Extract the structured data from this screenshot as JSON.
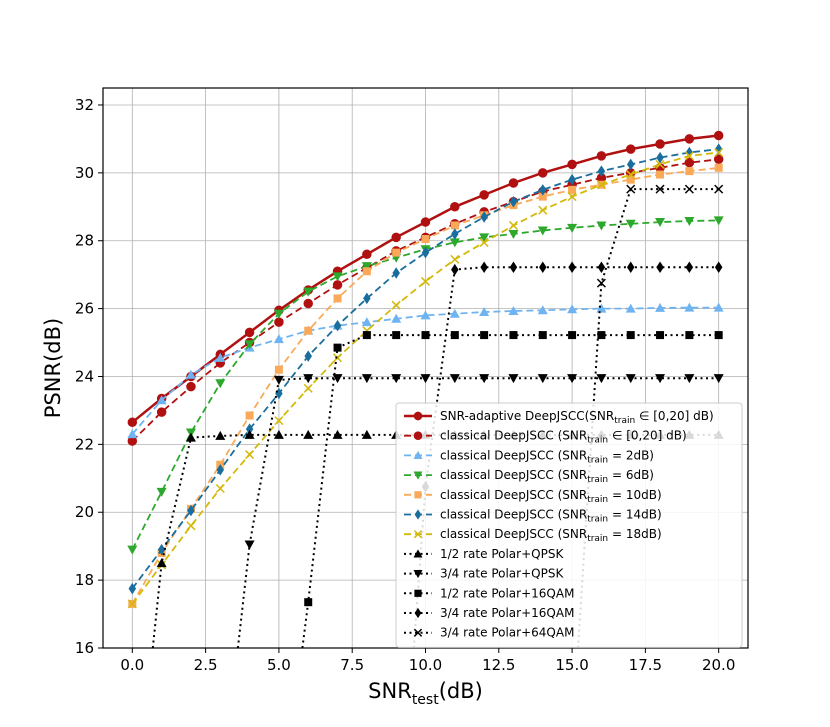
{
  "chart_data": {
    "type": "line",
    "xlabel": "SNR",
    "xlabel_sub": "test",
    "xlabel_suffix": "(dB)",
    "ylabel": "PSNR(dB)",
    "xlim": [
      -1,
      21
    ],
    "ylim": [
      16,
      32.5
    ],
    "xticks": [
      "0.0",
      "2.5",
      "5.0",
      "7.5",
      "10.0",
      "12.5",
      "15.0",
      "17.5",
      "20.0"
    ],
    "yticks": [
      "16",
      "18",
      "20",
      "22",
      "24",
      "26",
      "28",
      "30",
      "32"
    ],
    "grid": true,
    "legend_position": "lower-right",
    "series": [
      {
        "name": "SNR-adaptive DeepJSCC(SNR",
        "sub": "train",
        "suffix": " ∈ [0,20] dB)",
        "color": "#b01010",
        "dash": "solid",
        "marker": "circle",
        "width": 2.5,
        "x": [
          0,
          1,
          2,
          3,
          4,
          5,
          6,
          7,
          8,
          9,
          10,
          11,
          12,
          13,
          14,
          15,
          16,
          17,
          18,
          19,
          20
        ],
        "y": [
          22.65,
          23.35,
          24.0,
          24.65,
          25.3,
          25.95,
          26.55,
          27.1,
          27.6,
          28.1,
          28.55,
          29.0,
          29.35,
          29.7,
          30.0,
          30.25,
          30.5,
          30.7,
          30.85,
          31.0,
          31.1
        ]
      },
      {
        "name": "classical DeepJSCC (SNR",
        "sub": "train",
        "suffix": " ∈ [0,20] dB)",
        "color": "#b01010",
        "dash": "dashed",
        "marker": "circle",
        "width": 1.8,
        "x": [
          0,
          1,
          2,
          3,
          4,
          5,
          6,
          7,
          8,
          9,
          10,
          11,
          12,
          13,
          14,
          15,
          16,
          17,
          18,
          19,
          20
        ],
        "y": [
          22.1,
          22.95,
          23.7,
          24.4,
          25.0,
          25.6,
          26.15,
          26.7,
          27.2,
          27.7,
          28.1,
          28.5,
          28.85,
          29.15,
          29.45,
          29.65,
          29.85,
          30.0,
          30.15,
          30.3,
          30.4
        ]
      },
      {
        "name": "classical DeepJSCC (SNR",
        "sub": "train",
        "suffix": " = 2dB)",
        "color": "#6fb4f2",
        "dash": "dashed",
        "marker": "triangle-up",
        "width": 1.8,
        "x": [
          0,
          1,
          2,
          3,
          4,
          5,
          6,
          7,
          8,
          9,
          10,
          11,
          12,
          13,
          14,
          15,
          16,
          17,
          18,
          19,
          20
        ],
        "y": [
          22.3,
          23.3,
          24.05,
          24.55,
          24.85,
          25.1,
          25.35,
          25.5,
          25.6,
          25.7,
          25.8,
          25.85,
          25.9,
          25.93,
          25.95,
          25.98,
          26.0,
          26.0,
          26.02,
          26.03,
          26.03
        ]
      },
      {
        "name": "classical DeepJSCC (SNR",
        "sub": "train",
        "suffix": " = 6dB)",
        "color": "#2ca82c",
        "dash": "dashed",
        "marker": "triangle-down",
        "width": 1.8,
        "x": [
          0,
          1,
          2,
          3,
          4,
          5,
          6,
          7,
          8,
          9,
          10,
          11,
          12,
          13,
          14,
          15,
          16,
          17,
          18,
          19,
          20
        ],
        "y": [
          18.9,
          20.6,
          22.35,
          23.8,
          24.95,
          25.85,
          26.5,
          26.95,
          27.25,
          27.5,
          27.75,
          27.95,
          28.1,
          28.2,
          28.3,
          28.38,
          28.45,
          28.5,
          28.55,
          28.58,
          28.6
        ]
      },
      {
        "name": "classical DeepJSCC (SNR",
        "sub": "train",
        "suffix": " = 10dB)",
        "color": "#f9a957",
        "dash": "dashed",
        "marker": "square",
        "width": 1.8,
        "x": [
          0,
          1,
          2,
          3,
          4,
          5,
          6,
          7,
          8,
          9,
          10,
          11,
          12,
          13,
          14,
          15,
          16,
          17,
          18,
          19,
          20
        ],
        "y": [
          17.3,
          18.8,
          20.1,
          21.4,
          22.85,
          24.2,
          25.35,
          26.3,
          27.1,
          27.65,
          28.05,
          28.45,
          28.75,
          29.05,
          29.3,
          29.5,
          29.65,
          29.8,
          29.95,
          30.05,
          30.15
        ]
      },
      {
        "name": "classical DeepJSCC (SNR",
        "sub": "train",
        "suffix": " = 14dB)",
        "color": "#1a6e9e",
        "dash": "dashed",
        "marker": "diamond",
        "width": 1.8,
        "x": [
          0,
          1,
          2,
          3,
          4,
          5,
          6,
          7,
          8,
          9,
          10,
          11,
          12,
          13,
          14,
          15,
          16,
          17,
          18,
          19,
          20
        ],
        "y": [
          17.75,
          18.9,
          20.05,
          21.25,
          22.45,
          23.5,
          24.6,
          25.5,
          26.3,
          27.05,
          27.65,
          28.2,
          28.7,
          29.15,
          29.5,
          29.8,
          30.05,
          30.25,
          30.45,
          30.6,
          30.7
        ]
      },
      {
        "name": "classical DeepJSCC (SNR",
        "sub": "train",
        "suffix": " = 18dB)",
        "color": "#d4b90a",
        "dash": "dashed",
        "marker": "x",
        "width": 1.8,
        "x": [
          0,
          1,
          2,
          3,
          4,
          5,
          6,
          7,
          8,
          9,
          10,
          11,
          12,
          13,
          14,
          15,
          16,
          17,
          18,
          19,
          20
        ],
        "y": [
          17.3,
          18.45,
          19.6,
          20.7,
          21.7,
          22.7,
          23.65,
          24.55,
          25.35,
          26.1,
          26.8,
          27.45,
          27.95,
          28.45,
          28.9,
          29.3,
          29.65,
          29.95,
          30.25,
          30.5,
          30.6
        ]
      },
      {
        "name": "1/2 rate Polar+QPSK",
        "color": "#000000",
        "dash": "dotted",
        "marker": "triangle-up",
        "width": 2,
        "x": [
          0.7,
          1,
          2,
          3,
          4,
          5,
          6,
          7,
          8,
          9,
          10,
          11,
          12,
          13,
          14,
          15,
          16,
          17,
          18,
          19,
          20
        ],
        "y": [
          16.0,
          18.5,
          22.2,
          22.25,
          22.28,
          22.28,
          22.28,
          22.28,
          22.28,
          22.28,
          22.28,
          22.28,
          22.28,
          22.28,
          22.28,
          22.28,
          22.28,
          22.28,
          22.28,
          22.28,
          22.28
        ]
      },
      {
        "name": "3/4 rate Polar+QPSK",
        "color": "#000000",
        "dash": "dotted",
        "marker": "triangle-down",
        "width": 2,
        "x": [
          3.6,
          4,
          5,
          6,
          7,
          8,
          9,
          10,
          11,
          12,
          13,
          14,
          15,
          16,
          17,
          18,
          19,
          20
        ],
        "y": [
          16.0,
          19.05,
          23.9,
          23.95,
          23.95,
          23.95,
          23.95,
          23.95,
          23.95,
          23.95,
          23.95,
          23.95,
          23.95,
          23.95,
          23.95,
          23.95,
          23.95,
          23.95
        ]
      },
      {
        "name": "1/2 rate Polar+16QAM",
        "color": "#000000",
        "dash": "dotted",
        "marker": "square",
        "width": 2,
        "x": [
          5.8,
          6,
          7,
          8,
          9,
          10,
          11,
          12,
          13,
          14,
          15,
          16,
          17,
          18,
          19,
          20
        ],
        "y": [
          16.0,
          17.35,
          24.85,
          25.22,
          25.22,
          25.22,
          25.22,
          25.22,
          25.22,
          25.22,
          25.22,
          25.22,
          25.22,
          25.22,
          25.22,
          25.22
        ]
      },
      {
        "name": "3/4 rate Polar+16QAM",
        "color": "#000000",
        "dash": "dotted",
        "marker": "diamond",
        "width": 2,
        "x": [
          9.6,
          10,
          11,
          12,
          13,
          14,
          15,
          16,
          17,
          18,
          19,
          20
        ],
        "y": [
          16.0,
          20.75,
          27.15,
          27.22,
          27.22,
          27.22,
          27.22,
          27.22,
          27.22,
          27.22,
          27.22,
          27.22
        ]
      },
      {
        "name": "3/4 rate Polar+64QAM",
        "color": "#000000",
        "dash": "dotted",
        "marker": "x",
        "width": 2,
        "x": [
          15.2,
          16,
          17,
          18,
          19,
          20
        ],
        "y": [
          16.0,
          26.75,
          29.52,
          29.52,
          29.52,
          29.52
        ]
      }
    ]
  }
}
